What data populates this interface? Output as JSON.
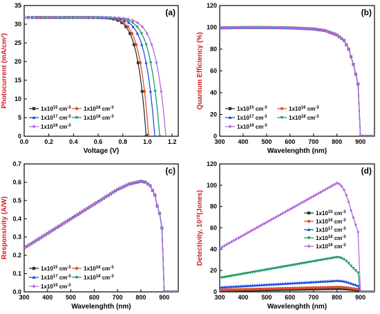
{
  "chart_data": [
    {
      "panel": "(a)",
      "type": "line",
      "xlabel": "Voltage (V)",
      "ylabel": "Photocurrent (mA/cm²)",
      "xlim": [
        0,
        1.25
      ],
      "ylim": [
        0,
        35
      ],
      "xticks": [
        "0.0",
        "0.2",
        "0.4",
        "0.6",
        "0.8",
        "1.0",
        "1.2"
      ],
      "yticks": [
        "0",
        "5",
        "10",
        "15",
        "20",
        "25",
        "30",
        "35"
      ],
      "legend": [
        {
          "base": "1x10",
          "exp": "15",
          "unit": " cm",
          "unit_exp": "-3"
        },
        {
          "base": "1x10",
          "exp": "16",
          "unit": " cm",
          "unit_exp": "-3"
        },
        {
          "base": "1x10",
          "exp": "17",
          "unit": " cm",
          "unit_exp": "-3"
        },
        {
          "base": "1x10",
          "exp": "18",
          "unit": " cm",
          "unit_exp": "-3"
        },
        {
          "base": "1x10",
          "exp": "19",
          "unit": " cm",
          "unit_exp": "-3"
        }
      ],
      "series": [
        {
          "doping": "1e15",
          "jsc": 31.8,
          "voc": 0.99
        },
        {
          "doping": "1e16",
          "jsc": 31.8,
          "voc": 1.01
        },
        {
          "doping": "1e17",
          "jsc": 31.8,
          "voc": 1.06
        },
        {
          "doping": "1e18",
          "jsc": 31.8,
          "voc": 1.1
        },
        {
          "doping": "1e19",
          "jsc": 31.8,
          "voc": 1.15
        }
      ]
    },
    {
      "panel": "(b)",
      "type": "line",
      "xlabel": "Wavelenghth (nm)",
      "ylabel": "Quantum Efficiency (%)",
      "xlim": [
        300,
        960
      ],
      "ylim": [
        0,
        120
      ],
      "xticks": [
        "300",
        "400",
        "500",
        "600",
        "700",
        "800",
        "900"
      ],
      "yticks": [
        "0",
        "20",
        "40",
        "60",
        "80",
        "100",
        "120"
      ],
      "legend": [
        {
          "base": "1x10",
          "exp": "15",
          "unit": " cm",
          "unit_exp": "-3"
        },
        {
          "base": "1x10",
          "exp": "16",
          "unit": " cm",
          "unit_exp": "-3"
        },
        {
          "base": "1x10",
          "exp": "17",
          "unit": " cm",
          "unit_exp": "-3"
        },
        {
          "base": "1x10",
          "exp": "18",
          "unit": " cm",
          "unit_exp": "-3"
        },
        {
          "base": "1x10",
          "exp": "19",
          "unit": " cm",
          "unit_exp": "-3"
        }
      ],
      "x": [
        300,
        400,
        500,
        600,
        700,
        750,
        800,
        830,
        850,
        870,
        880,
        890,
        895,
        900,
        960
      ],
      "y": [
        99.5,
        99.8,
        99.8,
        99.5,
        98.5,
        97,
        93,
        88,
        80,
        66,
        57,
        48,
        22,
        0,
        0
      ]
    },
    {
      "panel": "(c)",
      "type": "line",
      "xlabel": "Wavelenghth (nm)",
      "ylabel": "Responsivity (A/W)",
      "xlim": [
        300,
        960
      ],
      "ylim": [
        0,
        0.7
      ],
      "xticks": [
        "300",
        "400",
        "500",
        "600",
        "700",
        "800",
        "900"
      ],
      "yticks": [
        "0.0",
        "0.1",
        "0.2",
        "0.3",
        "0.4",
        "0.5",
        "0.6",
        "0.7"
      ],
      "legend": [
        {
          "base": "1x10",
          "exp": "15",
          "unit": " cm",
          "unit_exp": "-3"
        },
        {
          "base": "1x10",
          "exp": "16",
          "unit": " cm",
          "unit_exp": "-3"
        },
        {
          "base": "1x10",
          "exp": "17",
          "unit": " cm",
          "unit_exp": "-3"
        },
        {
          "base": "1x10",
          "exp": "18",
          "unit": " cm",
          "unit_exp": "-3"
        },
        {
          "base": "1x10",
          "exp": "19",
          "unit": " cm",
          "unit_exp": "-3"
        }
      ],
      "x": [
        300,
        400,
        500,
        600,
        700,
        750,
        800,
        820,
        840,
        860,
        870,
        880,
        890,
        900,
        960
      ],
      "y": [
        0.24,
        0.32,
        0.4,
        0.48,
        0.56,
        0.59,
        0.605,
        0.6,
        0.58,
        0.53,
        0.47,
        0.43,
        0.35,
        0,
        0
      ]
    },
    {
      "panel": "(d)",
      "type": "line",
      "xlabel": "Wavelenghth (nm)",
      "ylabel": "Detectivity, 10¹⁰(Jones)",
      "xlim": [
        300,
        960
      ],
      "ylim": [
        0,
        120
      ],
      "xticks": [
        "300",
        "400",
        "500",
        "600",
        "700",
        "800",
        "900"
      ],
      "yticks": [
        "0",
        "20",
        "40",
        "60",
        "80",
        "100",
        "120"
      ],
      "legend": [
        {
          "base": "1x10",
          "exp": "15",
          "unit": " cm",
          "unit_exp": "-3"
        },
        {
          "base": "1x10",
          "exp": "16",
          "unit": " cm",
          "unit_exp": "-3"
        },
        {
          "base": "1x10",
          "exp": "17",
          "unit": " cm",
          "unit_exp": "-3"
        },
        {
          "base": "1x10",
          "exp": "18",
          "unit": " cm",
          "unit_exp": "-3"
        },
        {
          "base": "1x10",
          "exp": "19",
          "unit": " cm",
          "unit_exp": "-3"
        }
      ],
      "series_scale": [
        {
          "doping": "1e15",
          "peak": 3.0
        },
        {
          "doping": "1e16",
          "peak": 4.5
        },
        {
          "doping": "1e17",
          "peak": 10.5
        },
        {
          "doping": "1e18",
          "peak": 32.5
        },
        {
          "doping": "1e19",
          "peak": 102
        }
      ]
    }
  ],
  "series_colors": [
    "#333333",
    "#e0502a",
    "#1f4fe0",
    "#1f9a6a",
    "#b26ae0"
  ],
  "marker_shapes": [
    "square",
    "circle",
    "triangle-up",
    "triangle-down",
    "diamond"
  ]
}
